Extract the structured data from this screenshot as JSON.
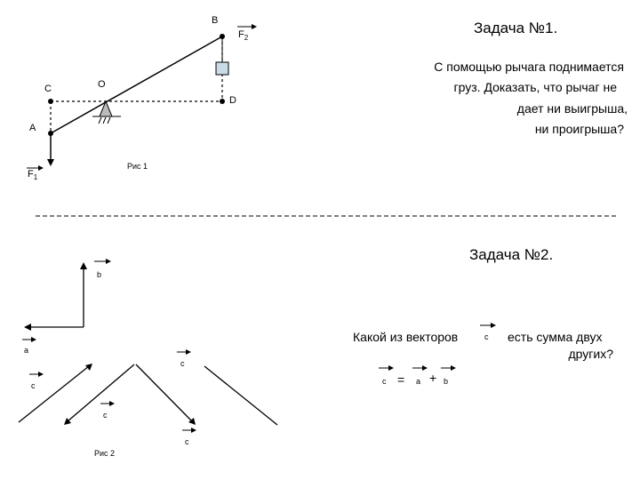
{
  "task1": {
    "title": "Задача №1.",
    "question_lines": [
      "С помощью рычага поднимается",
      "груз. Доказать, что рычаг не",
      "дает ни выигрыша,",
      "ни проигрыша?"
    ],
    "figure_caption": "Рис 1",
    "labels": {
      "B": "B",
      "F2": "F",
      "F2_sub": "2",
      "C": "C",
      "O": "O",
      "D": "D",
      "A": "A",
      "F1": "F",
      "F1_sub": "1"
    }
  },
  "task2": {
    "title": "Задача №2.",
    "question_part1": "Какой из векторов",
    "question_vector": "c",
    "question_part2_line1": "есть сумма двух",
    "question_part2_line2": "других?",
    "equation": {
      "c": "c",
      "eq": "=",
      "a": "a",
      "plus": "+",
      "b": "b"
    },
    "figure_caption": "Рис 2",
    "labels": {
      "b": "b",
      "a": "a",
      "c1": "c",
      "c2": "c",
      "c3": "c",
      "c4": "c"
    }
  }
}
